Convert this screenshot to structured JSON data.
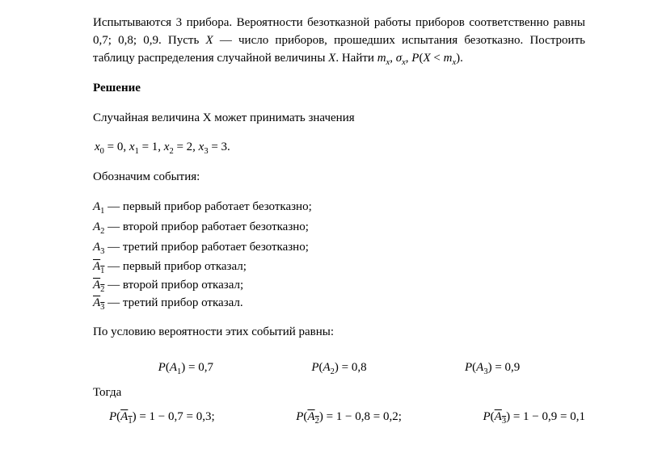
{
  "problem": {
    "text_prefix": "Испытываются 3 прибора. Вероятности безотказной работы приборов соответственно равны 0,7; 0,8; 0,9. Пусть ",
    "var_X": "X",
    "text_mid": " — число приборов, прошедших испытания безотказно. Построить таблицу распределения случайной величины ",
    "var_X2": "X",
    "text_suffix": ". Найти ",
    "find_mx": "m",
    "find_mx_sub": "x",
    "comma1": ",  ",
    "find_sigma": "σ",
    "find_sigma_sub": "x",
    "comma2": ",  ",
    "find_P": "P",
    "find_open": "(",
    "find_X": "X",
    "find_lt": " < ",
    "find_mx2": "m",
    "find_mx2_sub": "x",
    "find_close": ").",
    "font_size": 15
  },
  "solution_title": "Решение",
  "rv_intro": "Случайная величина X может принимать значения",
  "values": {
    "x0": "x",
    "x0_sub": "0",
    "x0_eq": " = 0,   ",
    "x1": "x",
    "x1_sub": "1",
    "x1_eq": " = 1,   ",
    "x2": "x",
    "x2_sub": "2",
    "x2_eq": " = 2,   ",
    "x3": "x",
    "x3_sub": "3",
    "x3_eq": " = 3."
  },
  "events_intro": "Обозначим события:",
  "events": [
    {
      "sym": "A",
      "sub": "1",
      "over": false,
      "desc": " — первый прибор работает безотказно;"
    },
    {
      "sym": "A",
      "sub": "2",
      "over": false,
      "desc": " — второй прибор работает безотказно;"
    },
    {
      "sym": "A",
      "sub": "3",
      "over": false,
      "desc": " — третий прибор работает безотказно;"
    },
    {
      "sym": "A",
      "sub": "1",
      "over": true,
      "desc": " — первый прибор отказал;"
    },
    {
      "sym": "A",
      "sub": "2",
      "over": true,
      "desc": " — второй прибор отказал;"
    },
    {
      "sym": "A",
      "sub": "3",
      "over": true,
      "desc": " — третий прибор отказал."
    }
  ],
  "prob_intro": "По условию вероятности этих событий равны:",
  "probs_direct": [
    {
      "P": "P",
      "open": "(",
      "sym": "A",
      "sub": "1",
      "close": ")",
      "eq": " = 0,7"
    },
    {
      "P": "P",
      "open": "(",
      "sym": "A",
      "sub": "2",
      "close": ")",
      "eq": " = 0,8"
    },
    {
      "P": "P",
      "open": "(",
      "sym": "A",
      "sub": "3",
      "close": ")",
      "eq": " = 0,9"
    }
  ],
  "then_label": "Тогда",
  "probs_comp": [
    {
      "P": "P",
      "open": "(",
      "sym": "A",
      "sub": "1",
      "close": ")",
      "eq": " = 1 − 0,7 = 0,3;"
    },
    {
      "P": "P",
      "open": "(",
      "sym": "A",
      "sub": "2",
      "close": ")",
      "eq": " = 1 − 0,8 = 0,2;"
    },
    {
      "P": "P",
      "open": "(",
      "sym": "A",
      "sub": "3",
      "close": ")",
      "eq": " = 1 − 0,9 = 0,1"
    }
  ]
}
